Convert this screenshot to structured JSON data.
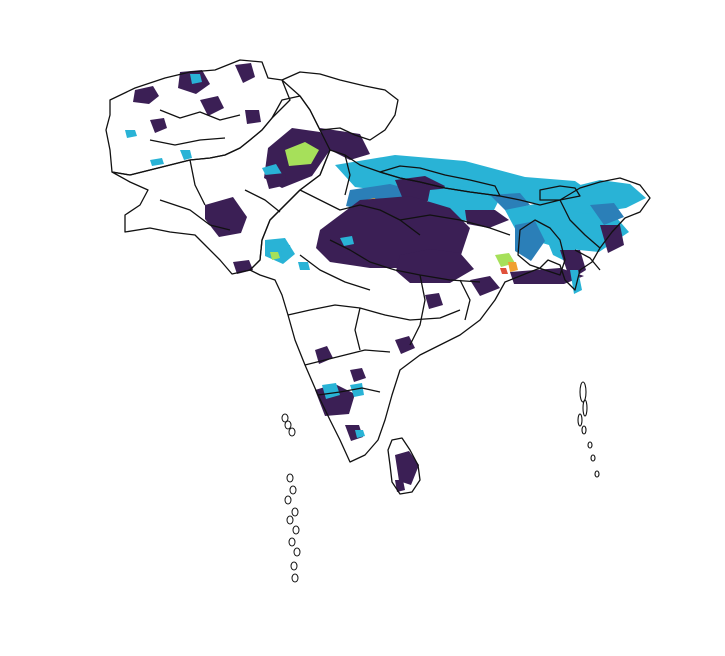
{
  "map": {
    "region": "South Asia",
    "background_color": "#ffffff",
    "border_color": "#111111",
    "palette": {
      "low": "#3b1f55",
      "mid_low": "#2b7fb8",
      "mid": "#29b3d6",
      "mid_high": "#a6e05a",
      "high": "#f0a030",
      "highest": "#e0503a"
    },
    "has_legend": false,
    "has_title": false
  }
}
